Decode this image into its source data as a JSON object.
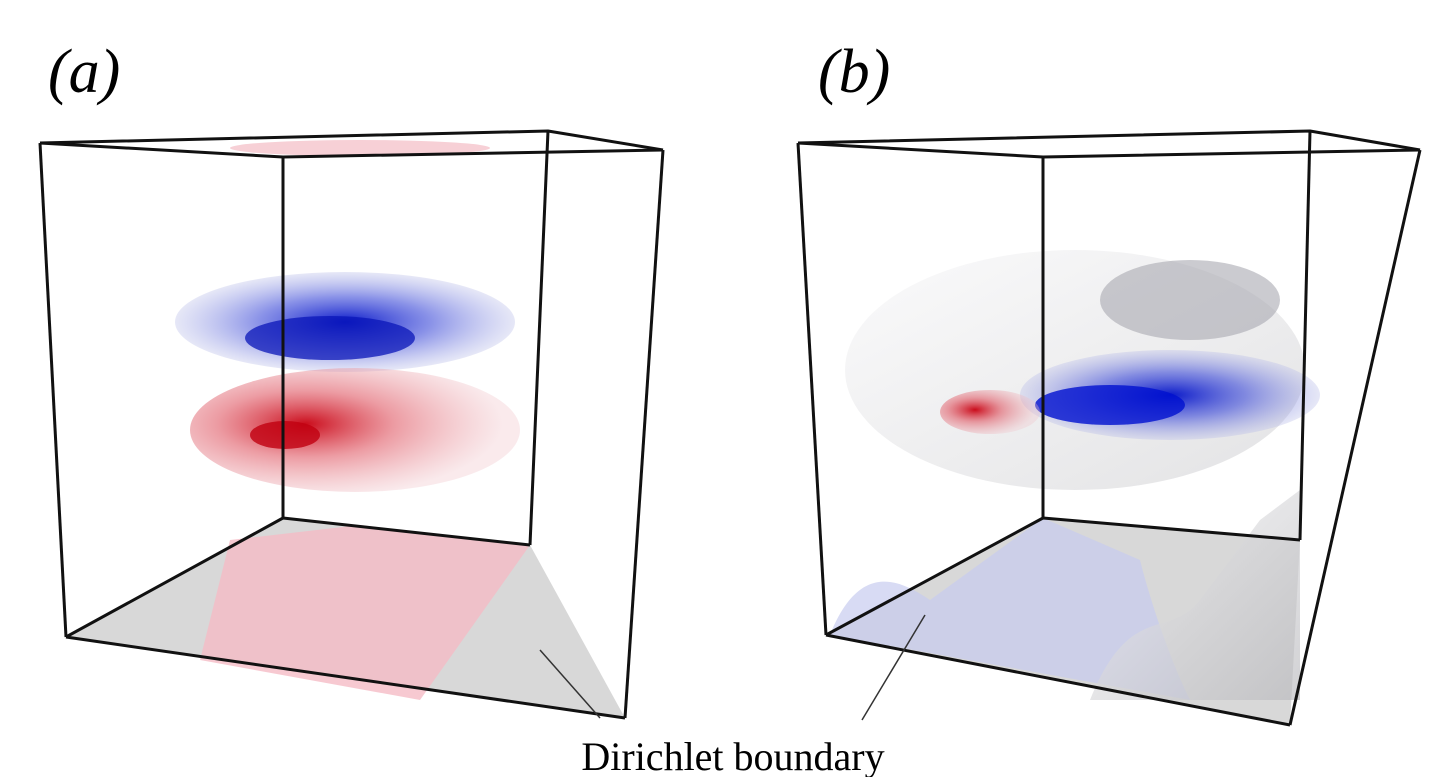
{
  "panels": [
    {
      "label": "(a)"
    },
    {
      "label": "(b)"
    }
  ],
  "annotation": "Dirichlet boundary"
}
